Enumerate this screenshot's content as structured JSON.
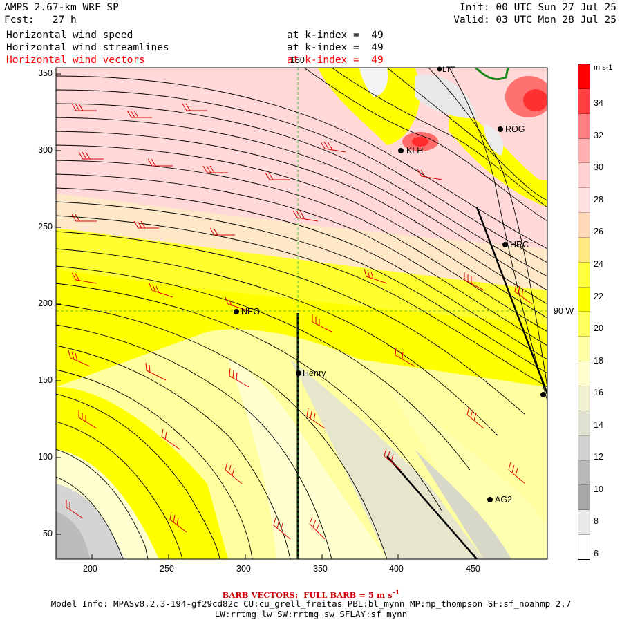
{
  "header": {
    "model": "AMPS 2.67-km WRF SP",
    "forecast": "Fcst:   27 h",
    "init": "Init: 00 UTC Sun 27 Jul 25",
    "valid": "Valid: 03 UTC Mon 28 Jul 25"
  },
  "fields": [
    {
      "name": "Horizontal wind speed",
      "level": "at k-index =  49",
      "color": "#000000"
    },
    {
      "name": "Horizontal wind streamlines",
      "level": "at k-index =  49",
      "color": "#000000"
    },
    {
      "name": "Horizontal wind vectors",
      "level": "at k-index =  49",
      "color": "#ff0000"
    }
  ],
  "x_ticks": [
    "200",
    "250",
    "300",
    "350",
    "400",
    "450"
  ],
  "y_ticks": [
    "350",
    "300",
    "250",
    "200",
    "150",
    "100",
    "50"
  ],
  "colorbar": {
    "unit": "m s-1",
    "labels": [
      "34",
      "32",
      "30",
      "28",
      "26",
      "24",
      "22",
      "20",
      "18",
      "16",
      "14",
      "12",
      "10",
      "8",
      "6"
    ],
    "colors": [
      "#ff0000",
      "#ff4040",
      "#ff8080",
      "#ffb0b0",
      "#ffd0d0",
      "#ffe0e0",
      "#ffd8b8",
      "#ffe880",
      "#ffff40",
      "#ffff00",
      "#ffff60",
      "#ffffa8",
      "#ffffd0",
      "#f0f0d0",
      "#e0e0d0",
      "#d0d0d0",
      "#b8b8b8",
      "#a8a8a8",
      "#e8e8e8",
      "#ffffff"
    ]
  },
  "stations": [
    {
      "code": "KLH"
    },
    {
      "code": "ROG"
    },
    {
      "code": "HRC"
    },
    {
      "code": "NEO"
    },
    {
      "code": "Henry"
    },
    {
      "code": "AG2"
    },
    {
      "code": "LTT"
    }
  ],
  "grid_labels": {
    "longitude": "180",
    "latitude": "90 W"
  },
  "footer": {
    "barb": "BARB VECTORS:  FULL BARB = 5 m s",
    "barb_sup": "-1",
    "model_info": "Model Info: MPASv8.2.3-194-gf29cd82c CU:cu_grell_freitas PBL:bl_mynn MP:mp_thompson SF:sf_noahmp 2.7",
    "physics": "LW:rrtmg_lw SW:rrtmg_sw SFLAY:sf_mynn"
  }
}
